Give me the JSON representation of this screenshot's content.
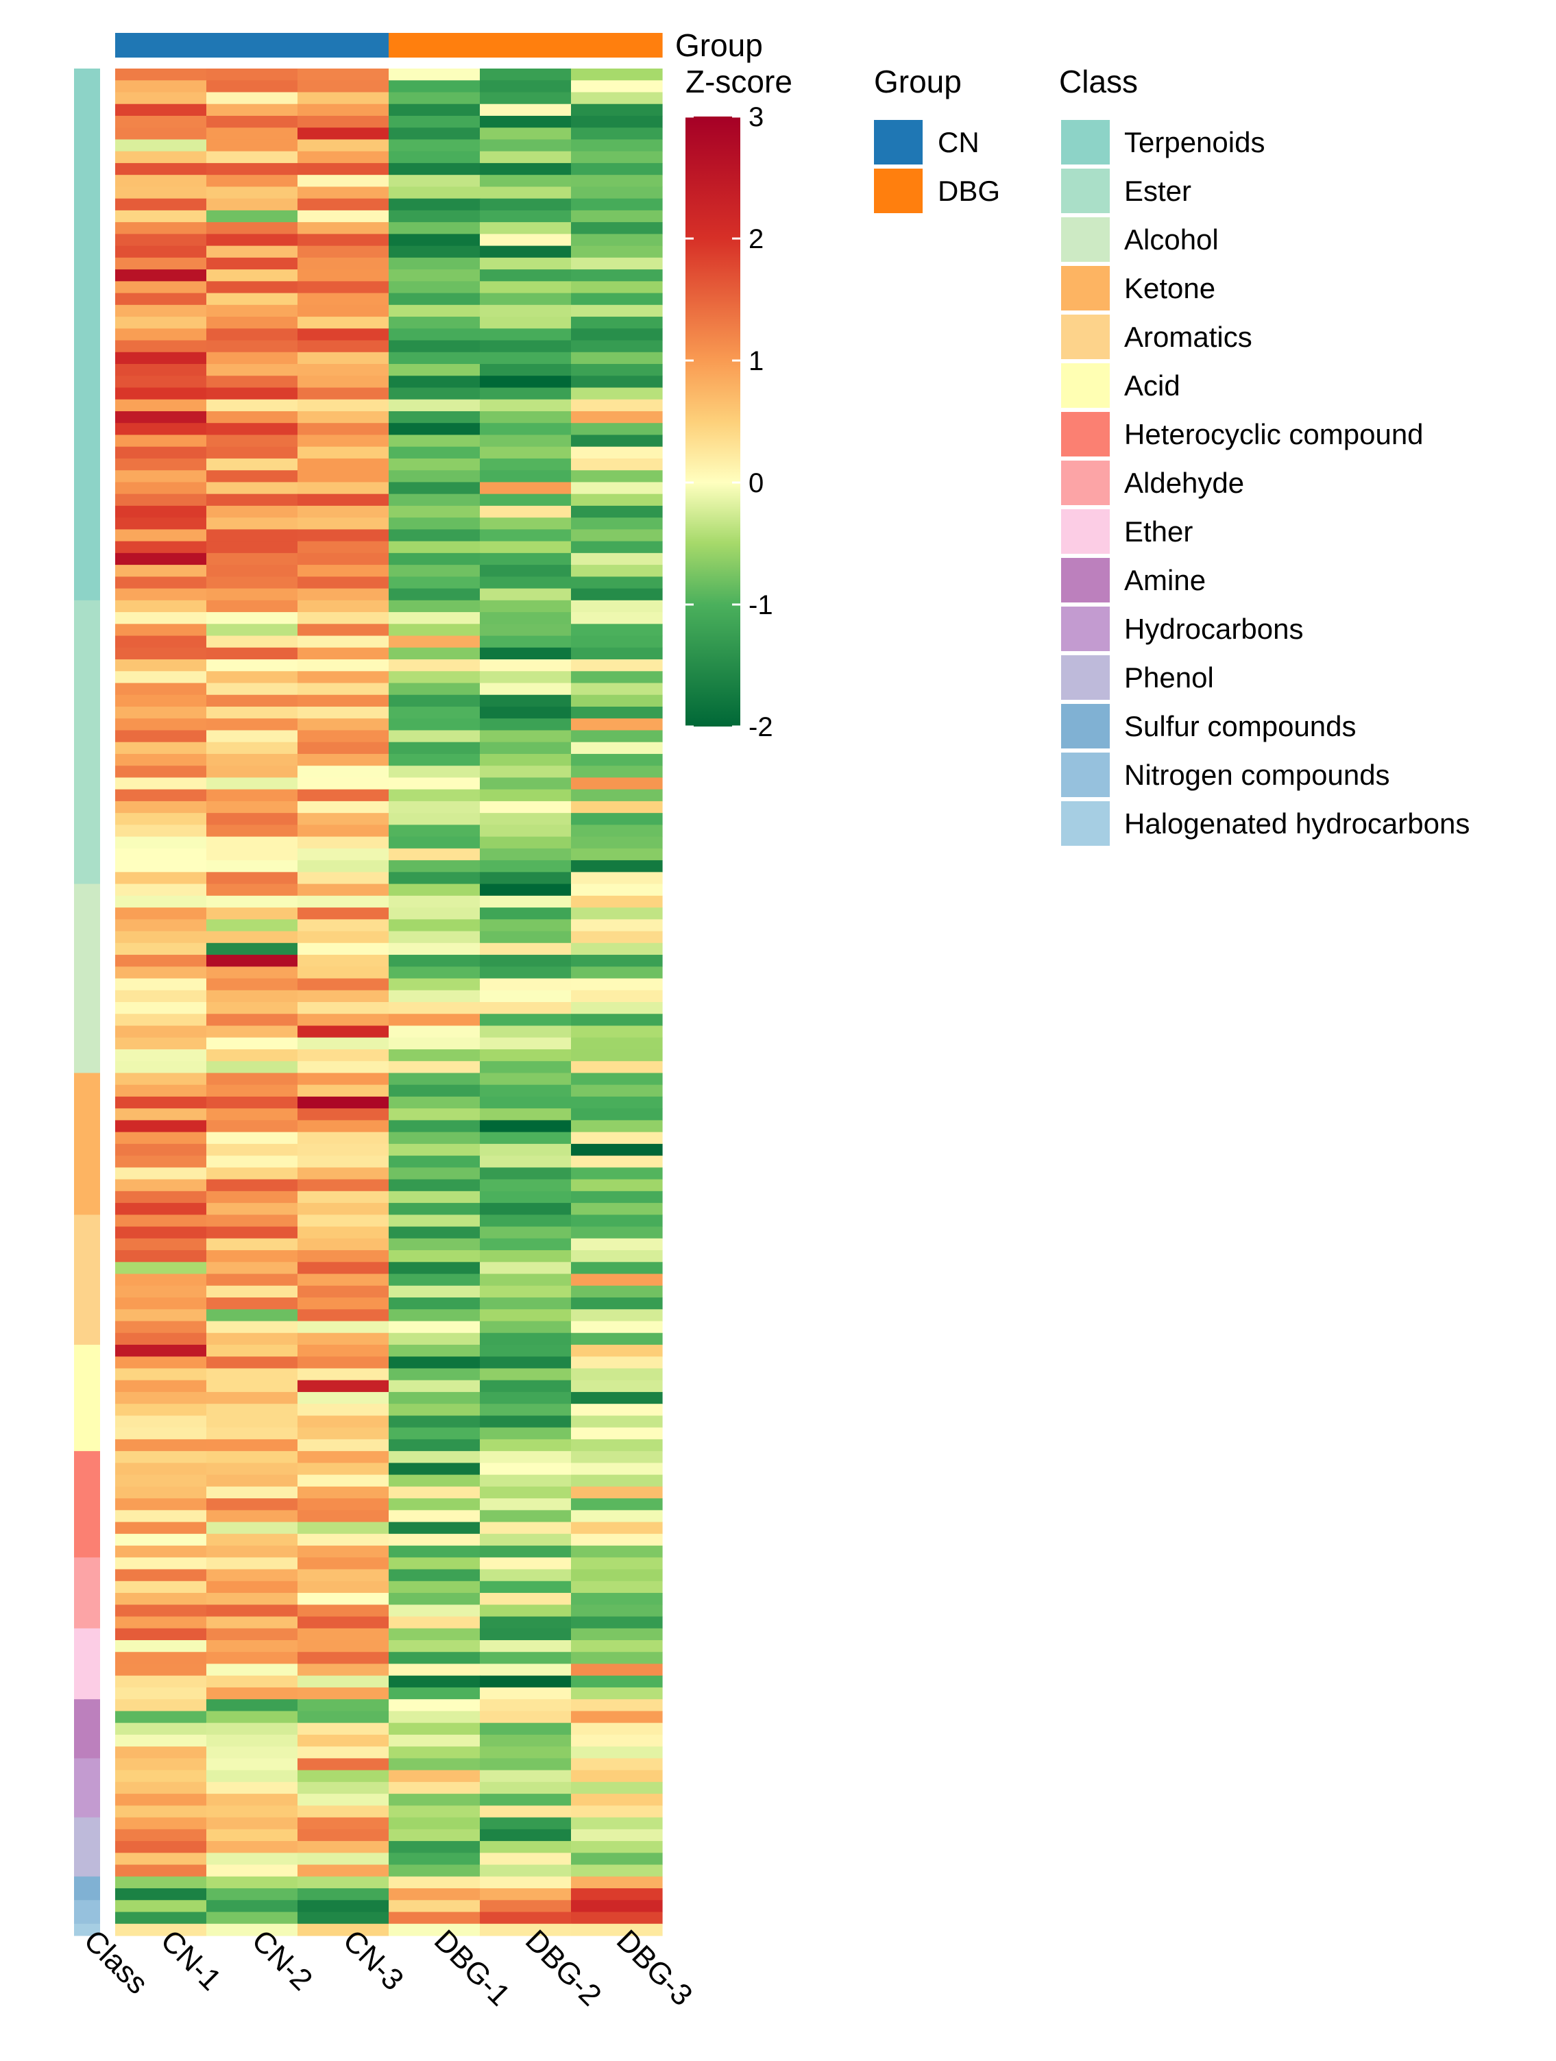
{
  "chart_data": {
    "type": "heatmap",
    "columns": [
      "CN-1",
      "CN-2",
      "CN-3",
      "DBG-1",
      "DBG-2",
      "DBG-3"
    ],
    "row_annotation_label": "Class",
    "column_annotation_label": "Group",
    "column_groups": [
      "CN",
      "CN",
      "CN",
      "DBG",
      "DBG",
      "DBG"
    ],
    "colorbar": {
      "title": "Z-score",
      "min": -2,
      "max": 3,
      "ticks": [
        "3",
        "2",
        "1",
        "0",
        "-1",
        "-2"
      ],
      "stops": [
        {
          "value": -2,
          "color": "#006837"
        },
        {
          "value": -1,
          "color": "#4bb05c"
        },
        {
          "value": -0.5,
          "color": "#a6d96a"
        },
        {
          "value": 0,
          "color": "#ffffbf"
        },
        {
          "value": 0.5,
          "color": "#fdd07a"
        },
        {
          "value": 1,
          "color": "#f99b52"
        },
        {
          "value": 2,
          "color": "#d73027"
        },
        {
          "value": 3,
          "color": "#a50026"
        }
      ]
    },
    "group_legend": {
      "title": "Group",
      "entries": [
        {
          "label": "CN",
          "color": "#1f77b4"
        },
        {
          "label": "DBG",
          "color": "#ff7f0e"
        }
      ]
    },
    "class_legend": {
      "title": "Class",
      "entries": [
        {
          "label": "Terpenoids",
          "color": "#8dd3c7",
          "rows": 45
        },
        {
          "label": "Ester",
          "color": "#aadfc8",
          "rows": 24
        },
        {
          "label": "Alcohol",
          "color": "#cdeac4",
          "rows": 16
        },
        {
          "label": "Ketone",
          "color": "#fdb462",
          "rows": 12
        },
        {
          "label": "Aromatics",
          "color": "#fdd38b",
          "rows": 11
        },
        {
          "label": "Acid",
          "color": "#ffffb3",
          "rows": 9
        },
        {
          "label": "Heterocyclic compound",
          "color": "#fb8072",
          "rows": 9
        },
        {
          "label": "Aldehyde",
          "color": "#fca4a6",
          "rows": 6
        },
        {
          "label": "Ether",
          "color": "#fccde5",
          "rows": 6
        },
        {
          "label": "Amine",
          "color": "#bc80bd",
          "rows": 5
        },
        {
          "label": "Hydrocarbons",
          "color": "#c39bd0",
          "rows": 5
        },
        {
          "label": "Phenol",
          "color": "#bebada",
          "rows": 5
        },
        {
          "label": "Sulfur compounds",
          "color": "#80b1d3",
          "rows": 2
        },
        {
          "label": "Nitrogen compounds",
          "color": "#96c1dd",
          "rows": 2
        },
        {
          "label": "Halogenated hydrocarbons",
          "color": "#a6cee3",
          "rows": 1
        }
      ]
    },
    "class_profiles": [
      {
        "class": "Terpenoids",
        "values": [
          1.2,
          1.0,
          0.9,
          -0.9,
          -0.9,
          -0.7
        ]
      },
      {
        "class": "Ester",
        "values": [
          0.8,
          0.7,
          0.6,
          -0.6,
          -0.9,
          -0.4
        ]
      },
      {
        "class": "Alcohol",
        "values": [
          0.5,
          0.5,
          0.6,
          -0.3,
          -0.5,
          -0.3
        ]
      },
      {
        "class": "Ketone",
        "values": [
          1.0,
          0.8,
          0.8,
          -0.8,
          -0.9,
          -0.6
        ]
      },
      {
        "class": "Aromatics",
        "values": [
          1.2,
          1.0,
          0.9,
          -0.8,
          -0.9,
          -0.8
        ]
      },
      {
        "class": "Acid",
        "values": [
          0.6,
          0.5,
          0.5,
          -1.1,
          -1.0,
          0.1
        ]
      },
      {
        "class": "Heterocyclic compound",
        "values": [
          0.4,
          0.5,
          0.6,
          -0.2,
          -0.3,
          0.0
        ]
      },
      {
        "class": "Aldehyde",
        "values": [
          0.9,
          0.9,
          0.8,
          -0.7,
          -0.6,
          -0.6
        ]
      },
      {
        "class": "Ether",
        "values": [
          0.9,
          0.8,
          0.8,
          -0.6,
          -0.5,
          -0.5
        ]
      },
      {
        "class": "Amine",
        "values": [
          0.2,
          -0.2,
          -0.3,
          0.1,
          -0.3,
          0.4
        ]
      },
      {
        "class": "Hydrocarbons",
        "values": [
          0.3,
          0.2,
          0.1,
          -0.2,
          -0.4,
          0.3
        ]
      },
      {
        "class": "Phenol",
        "values": [
          0.8,
          0.8,
          0.8,
          -0.8,
          -0.8,
          -0.6
        ]
      },
      {
        "class": "Sulfur compounds",
        "values": [
          -0.8,
          -0.8,
          -0.9,
          0.5,
          0.8,
          1.2
        ]
      },
      {
        "class": "Nitrogen compounds",
        "values": [
          -0.8,
          -0.8,
          -0.9,
          0.6,
          0.9,
          1.3
        ]
      },
      {
        "class": "Halogenated hydrocarbons",
        "values": [
          -0.6,
          -0.6,
          -0.7,
          0.4,
          0.6,
          0.9
        ]
      }
    ],
    "total_rows": 158
  }
}
